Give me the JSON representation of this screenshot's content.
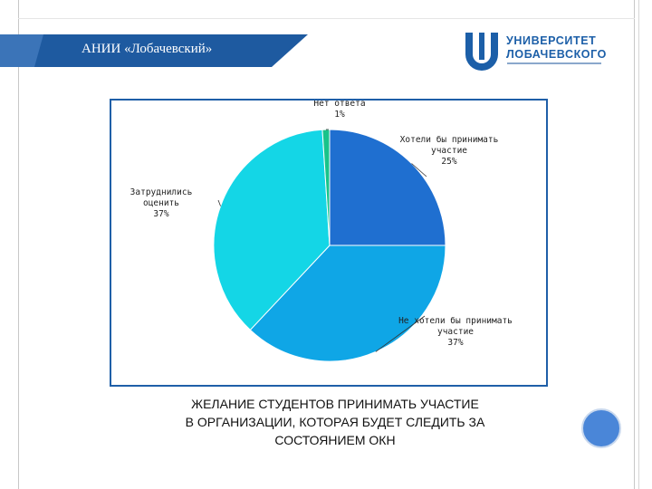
{
  "slide": {
    "banner_title": "АНИИ «Лобачевский»",
    "caption_lines": [
      "ЖЕЛАНИЕ СТУДЕНТОВ ПРИНИМАТЬ УЧАСТИЕ",
      "В ОРГАНИЗАЦИИ, КОТОРАЯ БУДЕТ СЛЕДИТЬ ЗА",
      "СОСТОЯНИЕМ ОКН"
    ]
  },
  "logo": {
    "line1": "УНИВЕРСИТЕТ",
    "line2": "ЛОБАЧЕВСКОГО"
  },
  "colors": {
    "banner": "#1e5aa0",
    "chart_border": "#1f5fa8",
    "logo_blue": "#1c5fa8",
    "circle": "#4a86d8"
  },
  "chart_data": {
    "type": "pie",
    "title": "",
    "slices": [
      {
        "label": "Хотели бы принимать участие",
        "value": 25,
        "display": "25%",
        "color": "#1f6fd0"
      },
      {
        "label": "Не хотели бы принимать участие",
        "value": 37,
        "display": "37%",
        "color": "#0fa6e6"
      },
      {
        "label": "Затруднились оценить",
        "value": 37,
        "display": "37%",
        "color": "#14d6e6"
      },
      {
        "label": "Нет ответа",
        "value": 1,
        "display": "1%",
        "color": "#18c38a"
      }
    ]
  }
}
